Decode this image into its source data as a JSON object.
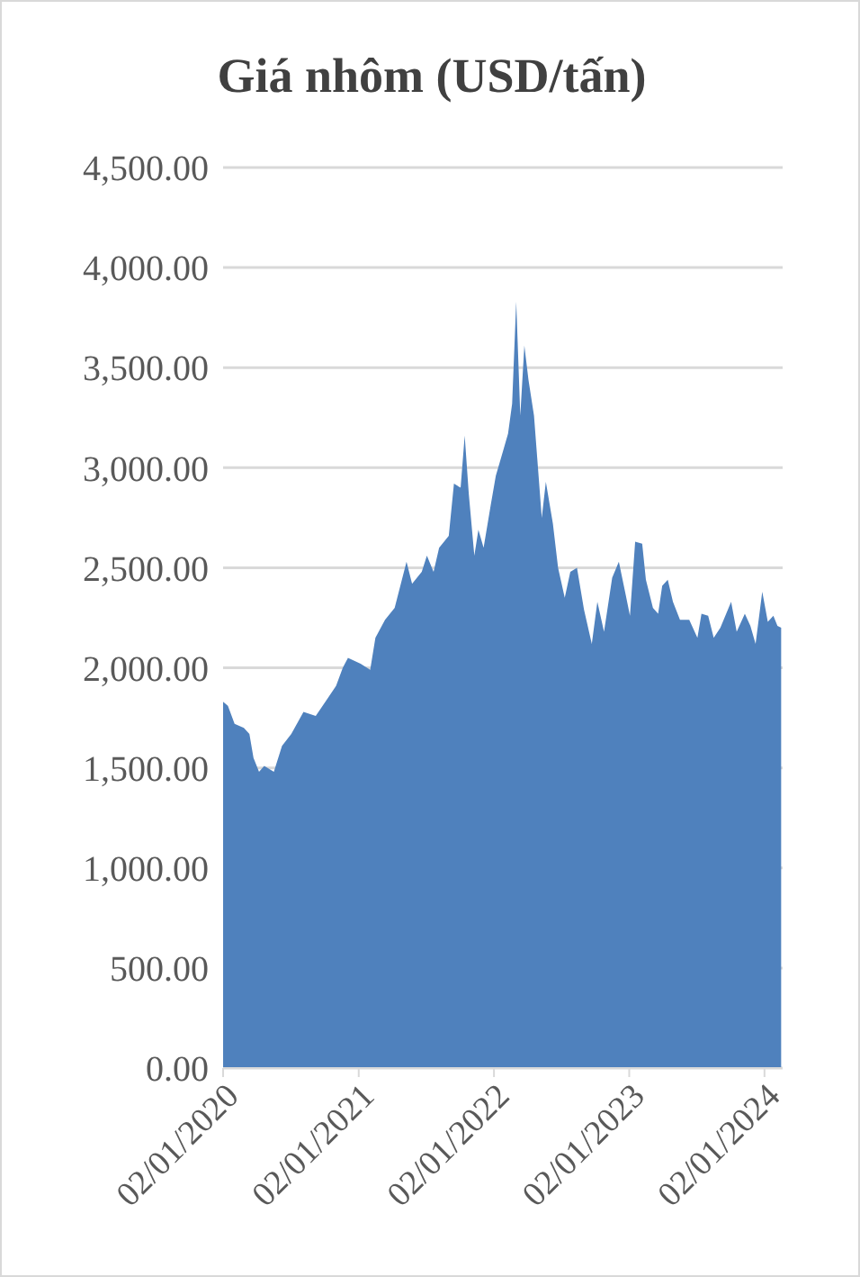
{
  "chart_data": {
    "type": "area",
    "title": "Giá nhôm (USD/tấn)",
    "x": [
      "2020-01-02",
      "2020-01-15",
      "2020-02-02",
      "2020-02-27",
      "2020-03-13",
      "2020-03-24",
      "2020-04-08",
      "2020-04-22",
      "2020-05-18",
      "2020-06-09",
      "2020-07-04",
      "2020-08-06",
      "2020-09-08",
      "2020-10-11",
      "2020-11-02",
      "2020-11-20",
      "2020-12-04",
      "2021-01-07",
      "2021-02-02",
      "2021-02-16",
      "2021-03-14",
      "2021-04-09",
      "2021-05-11",
      "2021-05-26",
      "2021-06-21",
      "2021-07-05",
      "2021-07-23",
      "2021-08-07",
      "2021-09-02",
      "2021-09-16",
      "2021-10-04",
      "2021-10-15",
      "2021-10-26",
      "2021-11-10",
      "2021-11-21",
      "2021-12-05",
      "2021-12-24",
      "2022-01-07",
      "2022-01-26",
      "2022-02-09",
      "2022-02-20",
      "2022-03-03",
      "2022-03-14",
      "2022-03-25",
      "2022-04-05",
      "2022-04-20",
      "2022-05-11",
      "2022-05-22",
      "2022-06-10",
      "2022-06-24",
      "2022-07-12",
      "2022-07-27",
      "2022-08-14",
      "2022-09-02",
      "2022-09-23",
      "2022-10-08",
      "2022-10-26",
      "2022-11-17",
      "2022-12-05",
      "2022-12-24",
      "2023-01-04",
      "2023-01-18",
      "2023-02-06",
      "2023-02-16",
      "2023-03-07",
      "2023-03-21",
      "2023-04-01",
      "2023-04-16",
      "2023-04-30",
      "2023-05-19",
      "2023-06-13",
      "2023-07-05",
      "2023-07-16",
      "2023-08-03",
      "2023-08-18",
      "2023-09-05",
      "2023-10-04",
      "2023-10-19",
      "2023-11-10",
      "2023-11-25",
      "2023-12-09",
      "2023-12-27",
      "2024-01-11",
      "2024-01-26",
      "2024-02-06",
      "2024-02-16"
    ],
    "values": [
      1830,
      1810,
      1720,
      1700,
      1670,
      1550,
      1480,
      1510,
      1480,
      1610,
      1670,
      1780,
      1760,
      1850,
      1910,
      2000,
      2050,
      2020,
      1990,
      2150,
      2240,
      2300,
      2530,
      2420,
      2480,
      2560,
      2480,
      2600,
      2660,
      2920,
      2900,
      3160,
      2870,
      2560,
      2690,
      2600,
      2810,
      2960,
      3080,
      3170,
      3320,
      3830,
      3260,
      3610,
      3440,
      3260,
      2750,
      2930,
      2720,
      2500,
      2350,
      2480,
      2500,
      2290,
      2120,
      2330,
      2180,
      2450,
      2530,
      2360,
      2260,
      2630,
      2620,
      2440,
      2300,
      2270,
      2410,
      2440,
      2330,
      2240,
      2240,
      2150,
      2270,
      2260,
      2150,
      2200,
      2330,
      2180,
      2270,
      2210,
      2120,
      2380,
      2230,
      2260,
      2210,
      2200
    ],
    "color": "#4f81bd",
    "xlim": [
      "2020-01-02",
      "2024-02-20"
    ],
    "xticks": [
      {
        "value": "2020-01-02",
        "label": "02/01/2020"
      },
      {
        "value": "2021-01-02",
        "label": "02/01/2021"
      },
      {
        "value": "2022-01-02",
        "label": "02/01/2022"
      },
      {
        "value": "2023-01-02",
        "label": "02/01/2023"
      },
      {
        "value": "2024-01-02",
        "label": "02/01/2024"
      }
    ],
    "ylim": [
      0,
      4500
    ],
    "yticks": [
      {
        "value": 0,
        "label": "0.00"
      },
      {
        "value": 500,
        "label": "500.00"
      },
      {
        "value": 1000,
        "label": "1,000.00"
      },
      {
        "value": 1500,
        "label": "1,500.00"
      },
      {
        "value": 2000,
        "label": "2,000.00"
      },
      {
        "value": 2500,
        "label": "2,500.00"
      },
      {
        "value": 3000,
        "label": "3,000.00"
      },
      {
        "value": 3500,
        "label": "3,500.00"
      },
      {
        "value": 4000,
        "label": "4,000.00"
      },
      {
        "value": 4500,
        "label": "4,500.00"
      }
    ],
    "grid": "y"
  }
}
